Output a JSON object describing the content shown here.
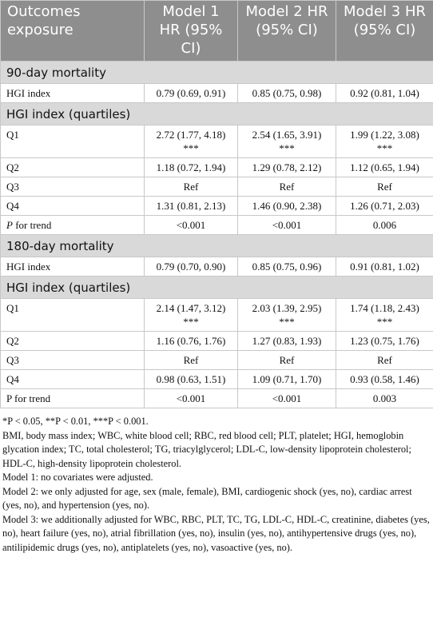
{
  "table": {
    "header": [
      "Outcomes exposure",
      "Model 1 HR (95% CI)",
      "Model 2 HR (95% CI)",
      "Model 3 HR (95% CI)"
    ],
    "sections": [
      {
        "title": "90-day mortality",
        "rows": [
          [
            "HGI index",
            "0.79 (0.69, 0.91)",
            "0.85 (0.75, 0.98)",
            "0.92 (0.81, 1.04)"
          ]
        ]
      },
      {
        "title": "HGI index (quartiles)",
        "rows": [
          [
            "Q1",
            "2.72 (1.77, 4.18) ***",
            "2.54 (1.65, 3.91) ***",
            "1.99 (1.22, 3.08) ***"
          ],
          [
            "Q2",
            "1.18 (0.72, 1.94)",
            "1.29 (0.78, 2.12)",
            "1.12 (0.65, 1.94)"
          ],
          [
            "Q3",
            "Ref",
            "Ref",
            "Ref"
          ],
          [
            "Q4",
            "1.31 (0.81, 2.13)",
            "1.46 (0.90, 2.38)",
            "1.26 (0.71, 2.03)"
          ],
          [
            "P for trend",
            "<0.001",
            "<0.001",
            "0.006"
          ]
        ]
      },
      {
        "title": "180-day mortality",
        "rows": [
          [
            "HGI index",
            "0.79 (0.70, 0.90)",
            "0.85 (0.75, 0.96)",
            "0.91 (0.81, 1.02)"
          ]
        ]
      },
      {
        "title": "HGI index (quartiles)",
        "rows": [
          [
            "Q1",
            "2.14 (1.47, 3.12) ***",
            "2.03 (1.39, 2.95) ***",
            "1.74 (1.18, 2.43) ***"
          ],
          [
            "Q2",
            "1.16 (0.76, 1.76)",
            "1.27 (0.83, 1.93)",
            "1.23 (0.75, 1.76)"
          ],
          [
            "Q3",
            "Ref",
            "Ref",
            "Ref"
          ],
          [
            "Q4",
            "0.98 (0.63, 1.51)",
            "1.09 (0.71, 1.70)",
            "0.93 (0.58, 1.46)"
          ],
          [
            "P for trend",
            "<0.001",
            "<0.001",
            "0.003"
          ]
        ]
      }
    ]
  },
  "footnotes": [
    "*P < 0.05, **P < 0.01, ***P < 0.001.",
    "BMI, body mass index; WBC, white blood cell; RBC, red blood cell; PLT, platelet; HGI, hemoglobin glycation index; TC, total cholesterol; TG, triacylglycerol; LDL-C, low-density lipoprotein cholesterol; HDL-C, high-density lipoprotein cholesterol.",
    "Model 1: no covariates were adjusted.",
    "Model 2: we only adjusted for age, sex (male, female), BMI, cardiogenic shock (yes, no), cardiac arrest (yes, no), and hypertension (yes, no).",
    "Model 3: we additionally adjusted for WBC, RBC, PLT, TC, TG, LDL-C, HDL-C, creatinine, diabetes (yes, no), heart failure (yes, no), atrial fibrillation (yes, no), insulin (yes, no), antihypertensive drugs (yes, no), antilipidemic drugs (yes, no), antiplatelets (yes, no), vasoactive (yes, no)."
  ]
}
